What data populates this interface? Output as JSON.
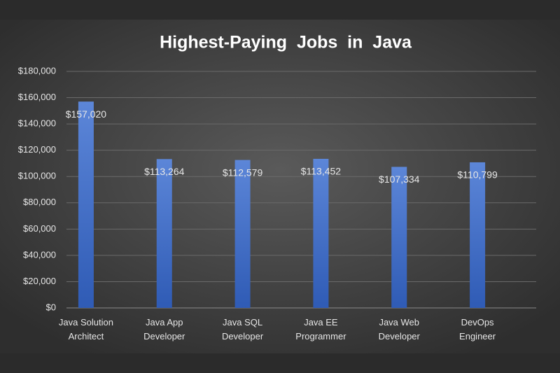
{
  "chart_data": {
    "type": "bar",
    "title": "Highest-Paying  Jobs  in  Java",
    "categories": [
      "Java Solution\nArchitect",
      "Java App\nDeveloper",
      "Java SQL\nDeveloper",
      "Java EE\nProgrammer",
      "Java Web\nDeveloper",
      "DevOps\nEngineer"
    ],
    "values": [
      157020,
      113264,
      112579,
      113452,
      107334,
      110799
    ],
    "value_labels": [
      "$157,020",
      "$113,264",
      "$112,579",
      "$113,452",
      "$107,334",
      "$110,799"
    ],
    "color": "#4472c4",
    "ylim": [
      0,
      180000
    ],
    "yticks": [
      {
        "value": 0,
        "label": "$0"
      },
      {
        "value": 20000,
        "label": "$20,000"
      },
      {
        "value": 40000,
        "label": "$40,000"
      },
      {
        "value": 60000,
        "label": "$60,000"
      },
      {
        "value": 80000,
        "label": "$80,000"
      },
      {
        "value": 100000,
        "label": "$100,000"
      },
      {
        "value": 120000,
        "label": "$120,000"
      },
      {
        "value": 140000,
        "label": "$140,000"
      },
      {
        "value": 160000,
        "label": "$160,000"
      },
      {
        "value": 180000,
        "label": "$180,000"
      }
    ],
    "grid": true
  }
}
